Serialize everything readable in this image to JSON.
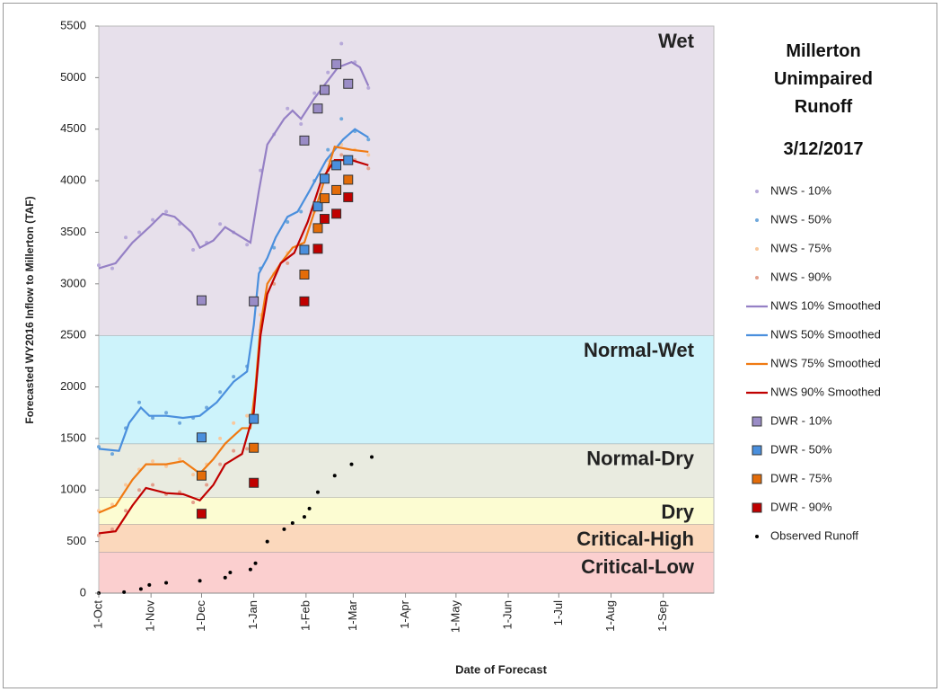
{
  "chart_data": {
    "type": "line",
    "title": "Millerton Unimpaired Runoff",
    "subtitle": "3/12/2017",
    "x_label": "Date of Forecast",
    "y_label": "Forecasted WY2016 Inflow to Millerton (TAF)",
    "xlim": [
      0,
      365
    ],
    "xticks": [
      {
        "value": 0,
        "label": "1-Oct"
      },
      {
        "value": 31,
        "label": "1-Nov"
      },
      {
        "value": 61,
        "label": "1-Dec"
      },
      {
        "value": 92,
        "label": "1-Jan"
      },
      {
        "value": 123,
        "label": "1-Feb"
      },
      {
        "value": 151,
        "label": "1-Mar"
      },
      {
        "value": 182,
        "label": "1-Apr"
      },
      {
        "value": 212,
        "label": "1-May"
      },
      {
        "value": 243,
        "label": "1-Jun"
      },
      {
        "value": 273,
        "label": "1-Jul"
      },
      {
        "value": 304,
        "label": "1-Aug"
      },
      {
        "value": 335,
        "label": "1-Sep"
      }
    ],
    "ylim": [
      0,
      5500
    ],
    "yticks": [
      0,
      500,
      1000,
      1500,
      2000,
      2500,
      3000,
      3500,
      4000,
      4500,
      5000,
      5500
    ],
    "bands": [
      {
        "name": "Critical-Low",
        "from": 0,
        "to": 400,
        "color": "#fbcfcf",
        "label_color": "#e9a6a6"
      },
      {
        "name": "Critical-High",
        "from": 400,
        "to": 670,
        "color": "#fbd8bc",
        "label_color": "#f7b98e"
      },
      {
        "name": "Dry",
        "from": 670,
        "to": 930,
        "color": "#fcfcd2",
        "label_color": "#e3e3c0"
      },
      {
        "name": "Normal-Dry",
        "from": 930,
        "to": 1450,
        "color": "#e9ebe0",
        "label_color": "#d6ddbf"
      },
      {
        "name": "Normal-Wet",
        "from": 1450,
        "to": 2500,
        "color": "#cdf3fb",
        "label_color": "#a7dbe6"
      },
      {
        "name": "Wet",
        "from": 2500,
        "to": 5500,
        "color": "#e7e0eb",
        "label_color": "#cbc0dd"
      }
    ],
    "series": [
      {
        "name": "NWS - 10%",
        "style": "dot",
        "color": "#b7a9d9",
        "x": [
          0,
          8,
          16,
          24,
          32,
          40,
          48,
          56,
          64,
          72,
          80,
          88,
          96,
          104,
          112,
          120,
          128,
          136,
          144,
          152,
          160
        ],
        "values": [
          3180,
          3150,
          3450,
          3500,
          3620,
          3700,
          3580,
          3330,
          3400,
          3580,
          3500,
          3380,
          4100,
          4450,
          4700,
          4550,
          4850,
          5050,
          5330,
          5150,
          4900
        ]
      },
      {
        "name": "NWS - 50%",
        "style": "dot",
        "color": "#6fa8dc",
        "x": [
          0,
          8,
          16,
          24,
          32,
          40,
          48,
          56,
          64,
          72,
          80,
          88,
          96,
          104,
          112,
          120,
          128,
          136,
          144,
          152,
          160
        ],
        "values": [
          1420,
          1350,
          1600,
          1850,
          1700,
          1750,
          1650,
          1700,
          1800,
          1950,
          2100,
          2200,
          3150,
          3350,
          3600,
          3700,
          4000,
          4300,
          4600,
          4480,
          4400
        ]
      },
      {
        "name": "NWS - 75%",
        "style": "dot",
        "color": "#f9c89c",
        "x": [
          0,
          8,
          16,
          24,
          32,
          40,
          48,
          56,
          64,
          72,
          80,
          88,
          96,
          104,
          112,
          120,
          128,
          136,
          144,
          152,
          160
        ],
        "values": [
          800,
          860,
          1050,
          1200,
          1280,
          1230,
          1300,
          1150,
          1250,
          1500,
          1650,
          1720,
          2700,
          3100,
          3300,
          3350,
          3700,
          4200,
          4350,
          4300,
          4250
        ]
      },
      {
        "name": "NWS - 90%",
        "style": "dot",
        "color": "#e3a08c",
        "x": [
          0,
          8,
          16,
          24,
          32,
          40,
          48,
          56,
          64,
          72,
          80,
          88,
          96,
          104,
          112,
          120,
          128,
          136,
          144,
          152,
          160
        ],
        "values": [
          560,
          620,
          800,
          1000,
          1050,
          960,
          980,
          880,
          1050,
          1250,
          1380,
          1400,
          2550,
          3000,
          3200,
          3300,
          3550,
          4100,
          4250,
          4200,
          4120
        ]
      },
      {
        "name": "NWS 10% Smoothed",
        "style": "line",
        "color": "#9580c5",
        "x": [
          0,
          10,
          20,
          30,
          38,
          45,
          55,
          60,
          68,
          75,
          85,
          90,
          95,
          100,
          110,
          115,
          120,
          128,
          135,
          142,
          150,
          155,
          160
        ],
        "values": [
          3150,
          3200,
          3400,
          3550,
          3680,
          3650,
          3500,
          3350,
          3420,
          3550,
          3450,
          3400,
          3900,
          4350,
          4600,
          4680,
          4600,
          4800,
          4950,
          5100,
          5150,
          5100,
          4920
        ]
      },
      {
        "name": "NWS 50% Smoothed",
        "style": "line",
        "color": "#4a8fdd",
        "x": [
          0,
          12,
          18,
          25,
          30,
          40,
          50,
          60,
          70,
          80,
          88,
          92,
          95,
          100,
          105,
          112,
          118,
          125,
          135,
          145,
          152,
          160
        ],
        "values": [
          1400,
          1380,
          1650,
          1800,
          1720,
          1720,
          1700,
          1720,
          1850,
          2050,
          2150,
          2600,
          3100,
          3250,
          3450,
          3650,
          3700,
          3900,
          4200,
          4400,
          4500,
          4420
        ]
      },
      {
        "name": "NWS 75% Smoothed",
        "style": "line",
        "color": "#f07a12",
        "x": [
          0,
          10,
          20,
          28,
          40,
          50,
          60,
          68,
          75,
          85,
          90,
          93,
          96,
          100,
          108,
          115,
          122,
          130,
          140,
          150,
          160
        ],
        "values": [
          780,
          850,
          1100,
          1250,
          1250,
          1280,
          1160,
          1300,
          1450,
          1600,
          1600,
          2000,
          2600,
          3000,
          3200,
          3350,
          3400,
          3800,
          4330,
          4300,
          4280
        ]
      },
      {
        "name": "NWS 90% Smoothed",
        "style": "line",
        "color": "#c00000",
        "x": [
          0,
          10,
          20,
          28,
          40,
          50,
          60,
          68,
          75,
          85,
          92,
          96,
          100,
          108,
          116,
          124,
          132,
          140,
          150,
          160
        ],
        "values": [
          580,
          600,
          850,
          1020,
          970,
          960,
          900,
          1050,
          1250,
          1350,
          1750,
          2500,
          2900,
          3200,
          3300,
          3600,
          4000,
          4200,
          4200,
          4150
        ]
      },
      {
        "name": "DWR - 10%",
        "style": "square",
        "color": "#9a8cc6",
        "x": [
          61,
          92,
          122,
          130,
          134,
          141,
          148
        ],
        "values": [
          2840,
          2830,
          4390,
          4700,
          4880,
          5130,
          4940
        ]
      },
      {
        "name": "DWR - 50%",
        "style": "square",
        "color": "#4a8fdd",
        "x": [
          61,
          92,
          122,
          130,
          134,
          141,
          148
        ],
        "values": [
          1510,
          1690,
          3330,
          3750,
          4020,
          4150,
          4200
        ]
      },
      {
        "name": "DWR - 75%",
        "style": "square",
        "color": "#e36c09",
        "x": [
          61,
          92,
          122,
          130,
          134,
          141,
          148
        ],
        "values": [
          1140,
          1410,
          3090,
          3540,
          3830,
          3910,
          4010
        ]
      },
      {
        "name": "DWR - 90%",
        "style": "square",
        "color": "#c00000",
        "x": [
          61,
          92,
          122,
          130,
          134,
          141,
          148
        ],
        "values": [
          770,
          1070,
          2830,
          3340,
          3630,
          3680,
          3840
        ]
      },
      {
        "name": "Observed Runoff",
        "style": "dot",
        "color": "#000000",
        "x": [
          0,
          15,
          25,
          30,
          40,
          60,
          75,
          78,
          90,
          93,
          100,
          110,
          115,
          122,
          125,
          130,
          140,
          150,
          162
        ],
        "values": [
          0,
          10,
          40,
          80,
          100,
          120,
          150,
          200,
          230,
          290,
          500,
          620,
          680,
          740,
          820,
          980,
          1140,
          1250,
          1320
        ]
      }
    ]
  }
}
